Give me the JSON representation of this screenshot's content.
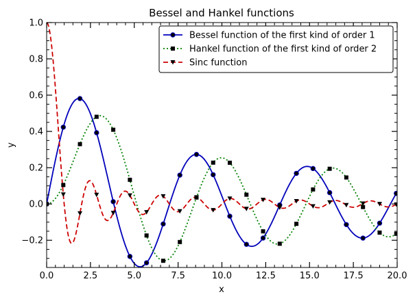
{
  "chart_data": {
    "type": "line",
    "title": "Bessel and Hankel functions",
    "xlabel": "x",
    "ylabel": "y",
    "xlim": [
      0,
      20
    ],
    "ylim": [
      -0.35,
      1.0
    ],
    "xticks": [
      "0.0",
      "2.5",
      "5.0",
      "7.5",
      "10.0",
      "12.5",
      "15.0",
      "17.5",
      "20.0"
    ],
    "yticks": [
      "−0.2",
      "0.0",
      "0.2",
      "0.4",
      "0.6",
      "0.8",
      "1.0"
    ],
    "legend_position": "top-right",
    "grid": false,
    "series": [
      {
        "name": "Bessel function of the first kind of order 1",
        "color": "#0000bb",
        "style": "solid",
        "marker": "circle",
        "function": "J1"
      },
      {
        "name": "Hankel function of the first kind of order 2",
        "color": "#007f00",
        "style": "dotted",
        "marker": "square",
        "marker_color": "#000000",
        "function": "J2"
      },
      {
        "name": "Sinc function",
        "color": "#cc0000",
        "style": "dashed",
        "marker": "triangle-down",
        "marker_color": "#000000",
        "function": "sinc"
      }
    ],
    "marker_x": [
      0,
      0.95,
      1.9,
      2.85,
      3.8,
      4.75,
      5.7,
      6.65,
      7.6,
      8.55,
      9.5,
      10.45,
      11.4,
      12.35,
      13.3,
      14.25,
      15.2,
      16.15,
      17.1,
      18.05,
      19.0,
      19.95
    ]
  }
}
